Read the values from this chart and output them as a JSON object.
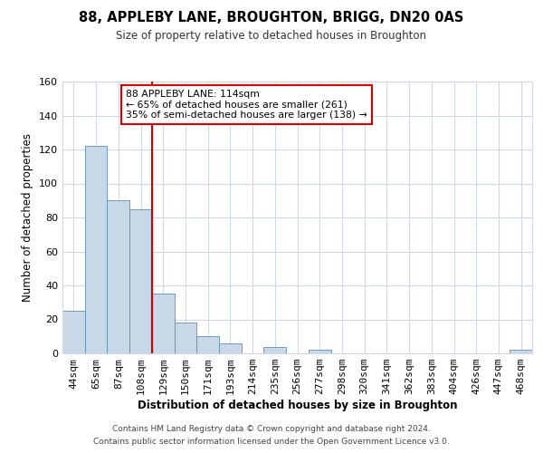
{
  "title": "88, APPLEBY LANE, BROUGHTON, BRIGG, DN20 0AS",
  "subtitle": "Size of property relative to detached houses in Broughton",
  "xlabel": "Distribution of detached houses by size in Broughton",
  "ylabel": "Number of detached properties",
  "bin_labels": [
    "44sqm",
    "65sqm",
    "87sqm",
    "108sqm",
    "129sqm",
    "150sqm",
    "171sqm",
    "193sqm",
    "214sqm",
    "235sqm",
    "256sqm",
    "277sqm",
    "298sqm",
    "320sqm",
    "341sqm",
    "362sqm",
    "383sqm",
    "404sqm",
    "426sqm",
    "447sqm",
    "468sqm"
  ],
  "bar_values": [
    25,
    122,
    90,
    85,
    35,
    18,
    10,
    6,
    0,
    4,
    0,
    2,
    0,
    0,
    0,
    0,
    0,
    0,
    0,
    0,
    2
  ],
  "bar_color": "#c8d8e8",
  "bar_edge_color": "#6090b0",
  "ylim": [
    0,
    160
  ],
  "yticks": [
    0,
    20,
    40,
    60,
    80,
    100,
    120,
    140,
    160
  ],
  "vline_x": 3.5,
  "vline_color": "#cc0000",
  "annotation_title": "88 APPLEBY LANE: 114sqm",
  "annotation_line1": "← 65% of detached houses are smaller (261)",
  "annotation_line2": "35% of semi-detached houses are larger (138) →",
  "annotation_box_color": "#ffffff",
  "annotation_box_edge": "#cc0000",
  "footer1": "Contains HM Land Registry data © Crown copyright and database right 2024.",
  "footer2": "Contains public sector information licensed under the Open Government Licence v3.0.",
  "background_color": "#ffffff",
  "grid_color": "#d0d8e8"
}
